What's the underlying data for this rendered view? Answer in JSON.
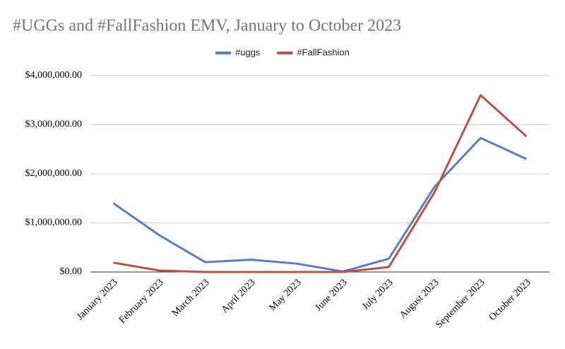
{
  "chart_data": {
    "type": "line",
    "title": "#UGGs and #FallFashion EMV, January to October 2023",
    "categories": [
      "January 2023",
      "February 2023",
      "March 2023",
      "April 2023",
      "May 2023",
      "June 2023",
      "July 2023",
      "August 2023",
      "September 2023",
      "October 2023"
    ],
    "series": [
      {
        "name": "#uggs",
        "color": "#5b7fbe",
        "values": [
          1400000,
          750000,
          200000,
          250000,
          170000,
          10000,
          270000,
          1740000,
          2730000,
          2300000
        ]
      },
      {
        "name": "#FallFashion",
        "color": "#bb5249",
        "values": [
          190000,
          30000,
          0,
          0,
          0,
          0,
          100000,
          1630000,
          3600000,
          2760000
        ]
      }
    ],
    "ylim": [
      0,
      4000000
    ],
    "yticks": [
      {
        "value": 0,
        "label": "$0.00"
      },
      {
        "value": 1000000,
        "label": "$1,000,000.00"
      },
      {
        "value": 2000000,
        "label": "$2,000,000.00"
      },
      {
        "value": 3000000,
        "label": "$3,000,000.00"
      },
      {
        "value": 4000000,
        "label": "$4,000,000.00"
      }
    ],
    "grid": true,
    "legend": "top"
  }
}
